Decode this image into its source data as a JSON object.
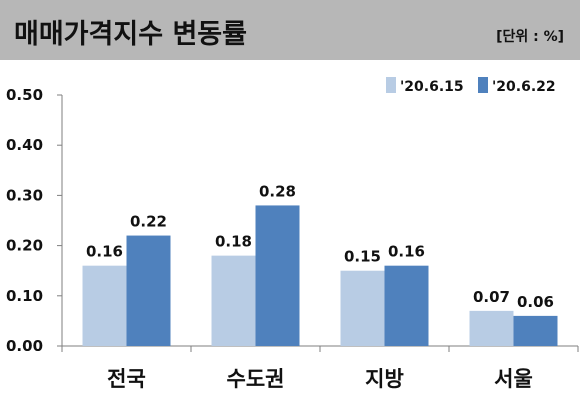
{
  "header": {
    "title": "매매가격지수 변동률",
    "unit": "[단위 : %]"
  },
  "colors": {
    "header_bg": "#b7b7b7",
    "series_1": "#b8cce4",
    "series_2": "#4f81bd"
  },
  "chart_data": {
    "type": "bar",
    "categories": [
      "전국",
      "수도권",
      "지방",
      "서울"
    ],
    "series": [
      {
        "name": "'20.6.15",
        "values": [
          0.16,
          0.18,
          0.15,
          0.07
        ],
        "labels": [
          "0.16",
          "0.18",
          "0.15",
          "0.07"
        ]
      },
      {
        "name": "'20.6.22",
        "values": [
          0.22,
          0.28,
          0.16,
          0.06
        ],
        "labels": [
          "0.22",
          "0.28",
          "0.16",
          "0.06"
        ]
      }
    ],
    "yticks": [
      "0.00",
      "0.10",
      "0.20",
      "0.30",
      "0.40",
      "0.50"
    ],
    "ylim": [
      0,
      0.5
    ],
    "grid": false,
    "legend": "top-right",
    "title": "매매가격지수 변동률",
    "xlabel": "",
    "ylabel": ""
  }
}
